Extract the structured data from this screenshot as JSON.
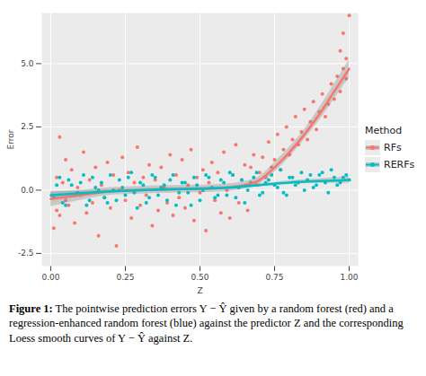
{
  "chart_data": {
    "type": "scatter",
    "x_label": "Z",
    "y_label": "Error",
    "caption_label": "Figure 1:",
    "caption": "The pointwise prediction errors Y − Ŷ given by a random forest (red) and a regression-enhanced random forest (blue) against the predictor Z and the corresponding Loess smooth curves of Y − Ŷ against Z.",
    "legend_title": "Method",
    "legend": "right",
    "grid": true,
    "xlim": [
      -0.03,
      1.03
    ],
    "ylim": [
      -3.0,
      7.0
    ],
    "xticks": [
      {
        "value": 0,
        "label": "0.00"
      },
      {
        "value": 0.25,
        "label": "0.25"
      },
      {
        "value": 0.5,
        "label": "0.50"
      },
      {
        "value": 0.75,
        "label": "0.75"
      },
      {
        "value": 1,
        "label": "1.00"
      }
    ],
    "yticks": [
      -2.5,
      {
        "value": 0,
        "label": "0.0"
      },
      2.5,
      {
        "value": 5,
        "label": "5.0"
      }
    ],
    "series": [
      {
        "name": "RFs",
        "color": "#F8766D",
        "marker": "circle",
        "line_style": "solid",
        "x": [
          0.01,
          0.02,
          0.02,
          0.03,
          0.03,
          0.04,
          0.05,
          0.05,
          0.06,
          0.07,
          0.08,
          0.09,
          0.1,
          0.11,
          0.12,
          0.13,
          0.14,
          0.15,
          0.16,
          0.17,
          0.18,
          0.19,
          0.2,
          0.21,
          0.22,
          0.23,
          0.24,
          0.25,
          0.26,
          0.27,
          0.28,
          0.29,
          0.3,
          0.31,
          0.32,
          0.33,
          0.34,
          0.35,
          0.36,
          0.37,
          0.38,
          0.39,
          0.4,
          0.41,
          0.42,
          0.43,
          0.44,
          0.45,
          0.46,
          0.47,
          0.48,
          0.49,
          0.5,
          0.51,
          0.52,
          0.53,
          0.54,
          0.55,
          0.56,
          0.57,
          0.58,
          0.59,
          0.6,
          0.61,
          0.62,
          0.63,
          0.64,
          0.65,
          0.66,
          0.67,
          0.68,
          0.69,
          0.7,
          0.71,
          0.72,
          0.73,
          0.74,
          0.75,
          0.76,
          0.77,
          0.78,
          0.79,
          0.8,
          0.81,
          0.82,
          0.83,
          0.84,
          0.85,
          0.86,
          0.87,
          0.88,
          0.89,
          0.9,
          0.91,
          0.92,
          0.93,
          0.94,
          0.95,
          0.96,
          0.97,
          0.97,
          0.98,
          0.98,
          0.99,
          0.99,
          1.0
        ],
        "values": [
          -1.5,
          -0.8,
          0.5,
          2.1,
          -1.0,
          0.3,
          -0.4,
          1.2,
          -0.6,
          0.8,
          -1.3,
          0.1,
          -0.2,
          1.5,
          -0.9,
          0.4,
          -0.5,
          0.9,
          -1.8,
          0.2,
          -0.3,
          1.1,
          -0.7,
          0.6,
          -2.2,
          0.0,
          1.3,
          -0.4,
          0.7,
          -1.1,
          0.3,
          1.7,
          -0.6,
          0.5,
          -0.2,
          1.0,
          -1.4,
          0.4,
          -0.8,
          0.9,
          0.1,
          -0.5,
          1.4,
          -1.0,
          0.6,
          -0.3,
          1.2,
          -0.7,
          0.2,
          1.6,
          -1.2,
          0.5,
          -0.1,
          0.8,
          -1.6,
          0.3,
          1.1,
          -0.4,
          0.7,
          -0.9,
          1.5,
          0.0,
          -1.1,
          0.6,
          1.8,
          -0.5,
          0.4,
          1.0,
          -0.8,
          0.9,
          1.4,
          0.2,
          0.7,
          1.3,
          0.5,
          1.9,
          0.9,
          1.2,
          2.2,
          0.8,
          1.6,
          2.5,
          1.4,
          2.0,
          2.9,
          1.8,
          2.3,
          3.2,
          2.0,
          2.7,
          3.5,
          2.4,
          3.1,
          3.8,
          2.9,
          3.4,
          4.2,
          3.6,
          4.5,
          3.9,
          5.5,
          4.8,
          6.2,
          5.2,
          4.4,
          6.9
        ],
        "smooth_x": [
          0,
          0.1,
          0.2,
          0.3,
          0.4,
          0.5,
          0.6,
          0.65,
          0.7,
          0.75,
          0.8,
          0.85,
          0.9,
          0.95,
          1.0
        ],
        "smooth": [
          -0.35,
          -0.2,
          -0.05,
          0.0,
          0.03,
          0.05,
          0.1,
          0.2,
          0.4,
          0.9,
          1.5,
          2.2,
          3.0,
          3.9,
          4.8
        ],
        "smooth_lower": [
          -0.65,
          -0.4,
          -0.2,
          -0.15,
          -0.12,
          -0.1,
          -0.05,
          0.05,
          0.25,
          0.7,
          1.3,
          2.0,
          2.75,
          3.6,
          4.45
        ],
        "smooth_upper": [
          -0.05,
          0.0,
          0.1,
          0.15,
          0.18,
          0.2,
          0.25,
          0.35,
          0.55,
          1.1,
          1.7,
          2.4,
          3.25,
          4.2,
          5.15
        ]
      },
      {
        "name": "RERFs",
        "color": "#00BFC4",
        "marker": "circle",
        "line_style": "solid",
        "x": [
          0.01,
          0.03,
          0.05,
          0.07,
          0.09,
          0.11,
          0.13,
          0.15,
          0.17,
          0.19,
          0.21,
          0.23,
          0.25,
          0.27,
          0.29,
          0.31,
          0.33,
          0.35,
          0.37,
          0.39,
          0.41,
          0.43,
          0.45,
          0.47,
          0.49,
          0.51,
          0.53,
          0.55,
          0.57,
          0.59,
          0.61,
          0.63,
          0.65,
          0.67,
          0.69,
          0.71,
          0.73,
          0.75,
          0.77,
          0.79,
          0.81,
          0.83,
          0.85,
          0.87,
          0.89,
          0.91,
          0.93,
          0.95,
          0.97,
          0.99,
          0.02,
          0.04,
          0.06,
          0.08,
          0.1,
          0.12,
          0.14,
          0.16,
          0.18,
          0.2,
          0.22,
          0.24,
          0.26,
          0.28,
          0.3,
          0.32,
          0.34,
          0.36,
          0.38,
          0.4,
          0.42,
          0.44,
          0.46,
          0.48,
          0.5,
          0.52,
          0.54,
          0.56,
          0.58,
          0.6,
          0.62,
          0.64,
          0.66,
          0.68,
          0.7,
          0.72,
          0.74,
          0.76,
          0.78,
          0.8,
          0.82,
          0.84,
          0.86,
          0.88,
          0.9,
          0.92,
          0.94,
          0.96,
          0.98,
          1.0
        ],
        "values": [
          -0.3,
          0.5,
          -0.6,
          0.2,
          -0.1,
          0.6,
          -0.4,
          0.1,
          0.3,
          -0.5,
          0.0,
          0.4,
          -0.2,
          0.7,
          -0.7,
          0.2,
          -0.3,
          0.5,
          0.1,
          -0.4,
          0.6,
          -0.1,
          0.3,
          -0.6,
          0.2,
          0.0,
          0.5,
          -0.3,
          0.4,
          -0.2,
          0.6,
          0.1,
          -0.5,
          0.3,
          0.7,
          -0.1,
          0.4,
          0.2,
          0.8,
          -0.2,
          0.5,
          0.3,
          0.0,
          0.6,
          0.2,
          0.7,
          -0.1,
          0.5,
          0.3,
          0.6,
          0.2,
          -0.5,
          0.4,
          -0.2,
          0.3,
          -0.6,
          0.5,
          0.0,
          -0.3,
          0.6,
          -0.4,
          0.1,
          0.5,
          -0.1,
          0.3,
          -0.5,
          0.6,
          -0.2,
          0.2,
          0.4,
          -0.6,
          0.3,
          -0.1,
          0.5,
          -0.4,
          0.6,
          0.1,
          -0.2,
          0.3,
          0.7,
          -0.3,
          0.4,
          0.0,
          0.5,
          -0.2,
          0.3,
          0.6,
          0.1,
          -0.1,
          0.5,
          0.2,
          0.7,
          0.4,
          0.1,
          0.6,
          0.3,
          0.8,
          0.2,
          0.5,
          0.4
        ],
        "smooth_x": [
          0,
          0.1,
          0.2,
          0.3,
          0.4,
          0.5,
          0.6,
          0.65,
          0.7,
          0.75,
          0.8,
          0.85,
          0.9,
          0.95,
          1.0
        ],
        "smooth": [
          -0.2,
          -0.12,
          -0.05,
          0.0,
          0.03,
          0.06,
          0.1,
          0.15,
          0.2,
          0.25,
          0.3,
          0.33,
          0.36,
          0.38,
          0.4
        ],
        "smooth_lower": [
          -0.32,
          -0.2,
          -0.12,
          -0.06,
          -0.03,
          0.0,
          0.04,
          0.09,
          0.14,
          0.19,
          0.23,
          0.25,
          0.27,
          0.27,
          0.27
        ],
        "smooth_upper": [
          -0.08,
          -0.04,
          0.02,
          0.06,
          0.09,
          0.12,
          0.16,
          0.21,
          0.26,
          0.31,
          0.37,
          0.41,
          0.45,
          0.49,
          0.53
        ]
      }
    ]
  }
}
